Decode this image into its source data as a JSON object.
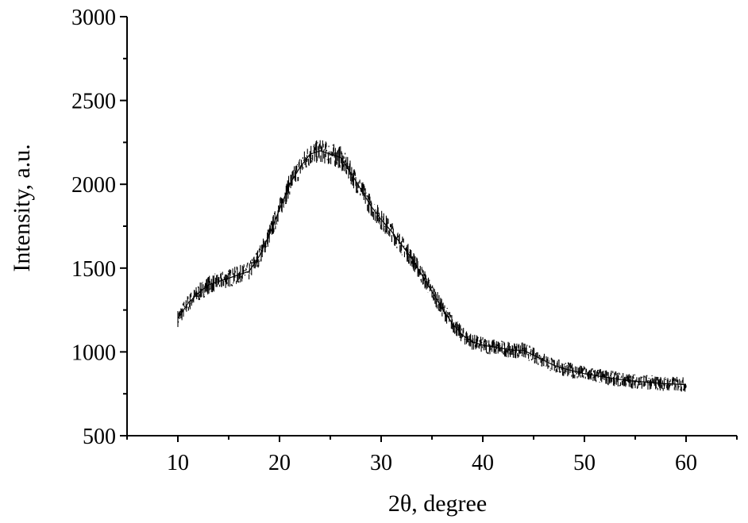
{
  "chart_data": {
    "type": "line",
    "title": "",
    "xlabel": "2θ, degree",
    "ylabel": "Intensity, a.u.",
    "xlim": [
      5,
      65
    ],
    "ylim": [
      500,
      3000
    ],
    "x_ticks": [
      10,
      20,
      30,
      40,
      50,
      60
    ],
    "y_ticks": [
      500,
      1000,
      1500,
      2000,
      2500,
      3000
    ],
    "grid": false,
    "legend": "none",
    "line_color": "#000000",
    "series": [
      {
        "x": [
          10,
          11,
          12,
          13,
          14,
          15,
          16,
          17,
          18,
          19,
          20,
          21,
          22,
          23,
          24,
          25,
          26,
          27,
          28,
          29,
          30,
          31,
          32,
          33,
          34,
          35,
          36,
          37,
          38,
          39,
          40,
          41,
          42,
          43,
          44,
          45,
          46,
          47,
          48,
          49,
          50,
          51,
          52,
          53,
          54,
          55,
          56,
          57,
          58,
          59,
          60
        ],
        "y": [
          1200,
          1290,
          1350,
          1400,
          1420,
          1440,
          1460,
          1480,
          1570,
          1700,
          1850,
          2000,
          2100,
          2180,
          2200,
          2180,
          2160,
          2070,
          1970,
          1870,
          1790,
          1720,
          1640,
          1560,
          1460,
          1360,
          1260,
          1170,
          1100,
          1060,
          1040,
          1030,
          1020,
          1010,
          1010,
          980,
          950,
          920,
          900,
          885,
          870,
          860,
          850,
          840,
          830,
          825,
          820,
          815,
          810,
          808,
          805
        ]
      }
    ]
  }
}
